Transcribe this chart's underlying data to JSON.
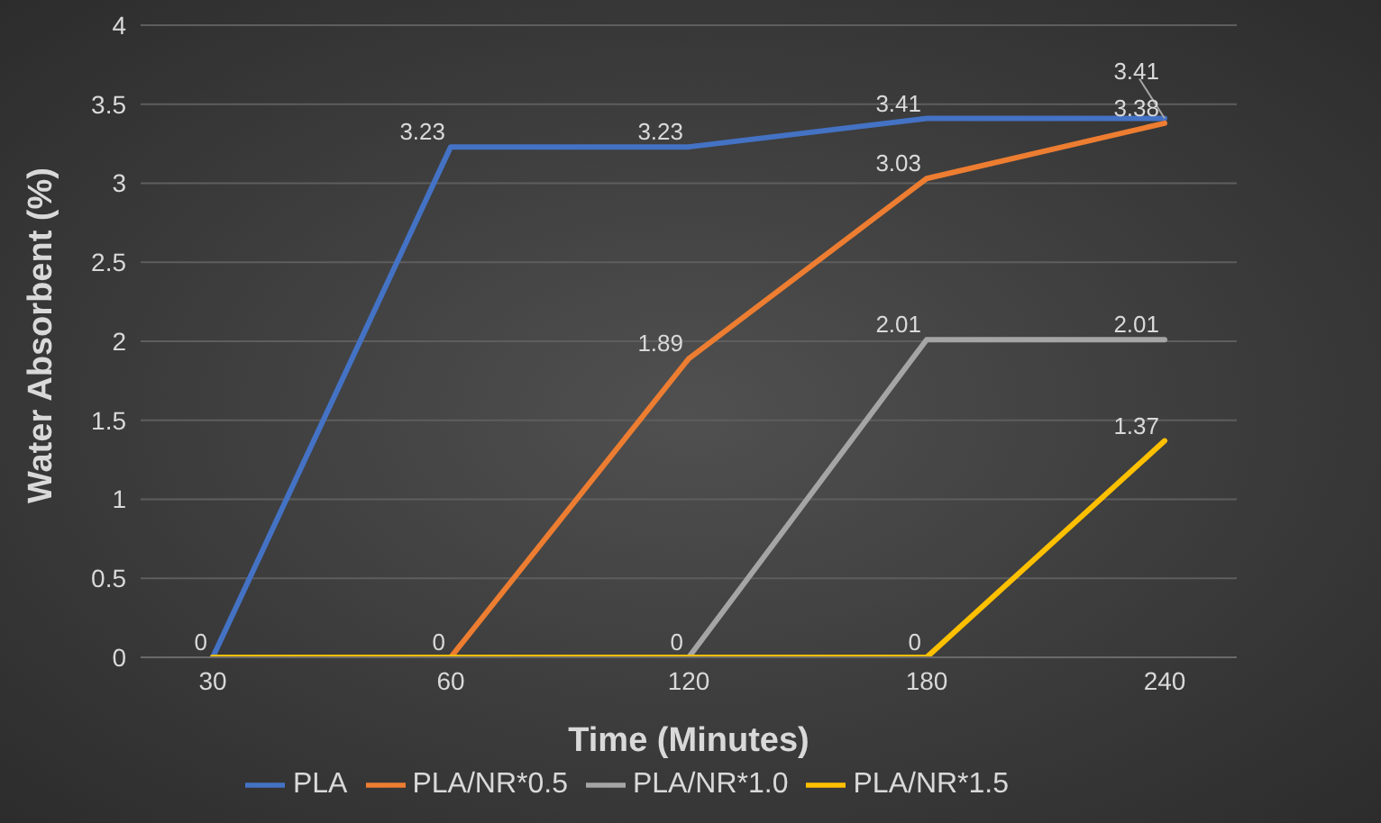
{
  "chart_data": {
    "type": "line",
    "xlabel": "Time (Minutes)",
    "ylabel": "Water Absorbent (%)",
    "categories": [
      "30",
      "60",
      "120",
      "180",
      "240"
    ],
    "ylim": [
      0,
      4
    ],
    "yticks": [
      0,
      0.5,
      1,
      1.5,
      2,
      2.5,
      3,
      3.5,
      4
    ],
    "grid": "y",
    "legend": "bottom",
    "marker": "none",
    "line_style": "solid",
    "series": [
      {
        "name": "PLA",
        "color": "#4472c4",
        "values": [
          0,
          3.23,
          3.23,
          3.41,
          3.41
        ],
        "value_labels": [
          "0",
          "3.23",
          "3.23",
          "3.41",
          "3.41"
        ]
      },
      {
        "name": "PLA/NR*0.5",
        "color": "#ed7d31",
        "values": [
          0,
          0,
          1.89,
          3.03,
          3.38
        ],
        "value_labels": [
          null,
          "0",
          "1.89",
          "3.03",
          "3.38"
        ]
      },
      {
        "name": "PLA/NR*1.0",
        "color": "#a5a5a5",
        "values": [
          0,
          0,
          0,
          2.01,
          2.01
        ],
        "value_labels": [
          null,
          null,
          "0",
          "2.01",
          "2.01"
        ]
      },
      {
        "name": "PLA/NR*1.5",
        "color": "#ffc000",
        "values": [
          0,
          0,
          0,
          0,
          1.37
        ],
        "value_labels": [
          null,
          null,
          null,
          "0",
          "1.37"
        ]
      }
    ]
  }
}
